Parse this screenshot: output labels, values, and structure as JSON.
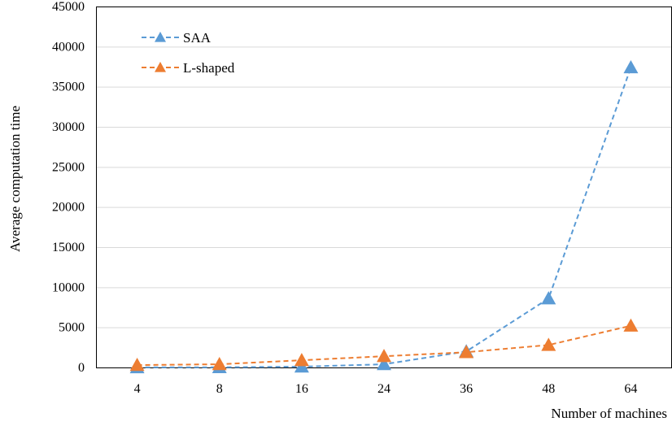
{
  "chart_data": {
    "type": "line",
    "title": "",
    "xlabel": "Number of machines",
    "ylabel": "Average computation time",
    "categories": [
      "4",
      "8",
      "16",
      "24",
      "36",
      "48",
      "64"
    ],
    "ylim": [
      0,
      45000
    ],
    "yticks": [
      "0",
      "5000",
      "10000",
      "15000",
      "20000",
      "25000",
      "30000",
      "35000",
      "40000",
      "45000"
    ],
    "grid": "horizontal",
    "legend_position": "top-left",
    "series": [
      {
        "name": "SAA",
        "color": "#5b9bd5",
        "line_style": "dashed",
        "marker": "triangle",
        "values": [
          10,
          20,
          100,
          400,
          2000,
          8600,
          37400
        ]
      },
      {
        "name": "L-shaped",
        "color": "#ed7d31",
        "line_style": "dashed",
        "marker": "triangle",
        "values": [
          300,
          400,
          900,
          1400,
          1900,
          2800,
          5200
        ]
      }
    ]
  }
}
